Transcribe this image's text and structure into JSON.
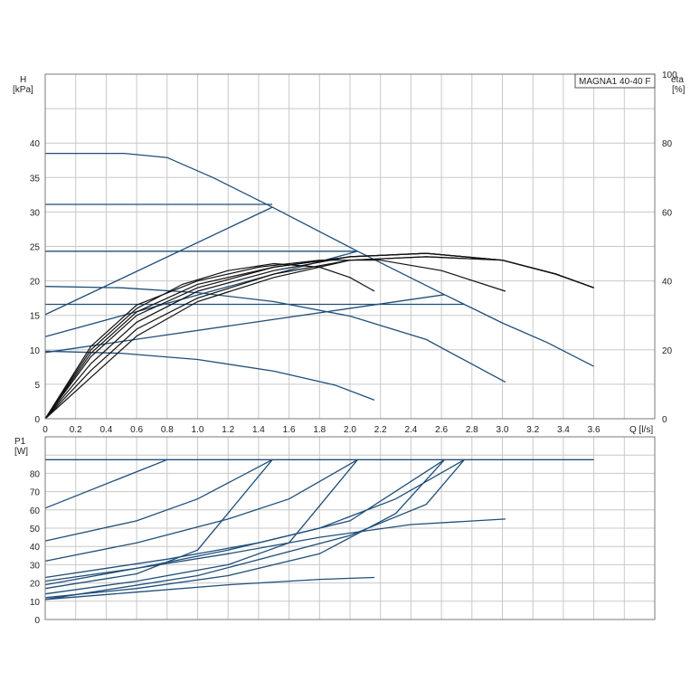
{
  "chart_data": [
    {
      "type": "line",
      "title": "MAGNA1 40-40 F",
      "xlabel": "Q [l/s]",
      "ylabel_line1": "H",
      "ylabel_line2": "[kPa]",
      "y2label_line1": "eta",
      "y2label_line2": "[%]",
      "xlim": [
        0,
        4
      ],
      "ylim": [
        0,
        50
      ],
      "y2lim": [
        0,
        100
      ],
      "x_ticks": [
        0,
        0.2,
        0.4,
        0.6,
        0.8,
        1.0,
        1.2,
        1.4,
        1.6,
        1.8,
        2.0,
        2.2,
        2.4,
        2.6,
        2.8,
        3.0,
        3.2,
        3.4,
        3.6
      ],
      "x_tick_labels": [
        "0",
        "0.2",
        "0.4",
        "0.6",
        "0.8",
        "1.0",
        "1.2",
        "1.4",
        "1.6",
        "1.8",
        "2.0",
        "2.2",
        "2.4",
        "2.6",
        "2.8",
        "3.0",
        "3.2",
        "3.4",
        "3.6"
      ],
      "y_ticks": [
        0,
        5,
        10,
        15,
        20,
        25,
        30,
        35,
        40
      ],
      "y2_ticks": [
        0,
        20,
        40,
        60,
        80,
        100
      ],
      "grid": true,
      "head_series": [
        {
          "color": "#1f4e79",
          "points": [
            [
              0,
              38.5
            ],
            [
              0.52,
              38.5
            ],
            [
              0.8,
              37.9
            ],
            [
              1.1,
              35.0
            ],
            [
              1.49,
              30.7
            ],
            [
              2.05,
              24.3
            ],
            [
              2.62,
              18.0
            ],
            [
              3.0,
              13.9
            ],
            [
              3.3,
              11.0
            ],
            [
              3.6,
              7.6
            ]
          ]
        },
        {
          "color": "#1f4e79",
          "points": [
            [
              0,
              31.1
            ],
            [
              1.49,
              31.1
            ]
          ]
        },
        {
          "color": "#1f4e79",
          "points": [
            [
              0,
              24.3
            ],
            [
              2.05,
              24.3
            ]
          ]
        },
        {
          "color": "#1f4e79",
          "points": [
            [
              0,
              16.6
            ],
            [
              2.75,
              16.6
            ]
          ]
        },
        {
          "color": "#1f4e79",
          "points": [
            [
              0,
              15.1
            ],
            [
              1.49,
              30.7
            ]
          ]
        },
        {
          "color": "#1f4e79",
          "points": [
            [
              0,
              11.9
            ],
            [
              2.05,
              24.3
            ]
          ]
        },
        {
          "color": "#1f4e79",
          "points": [
            [
              0,
              9.6
            ],
            [
              2.62,
              18.0
            ]
          ]
        },
        {
          "color": "#1f4e79",
          "points": [
            [
              0,
              19.2
            ],
            [
              0.5,
              19.0
            ],
            [
              1.0,
              18.3
            ],
            [
              1.5,
              17.0
            ],
            [
              2.0,
              14.9
            ],
            [
              2.5,
              11.5
            ],
            [
              3.02,
              5.3
            ]
          ]
        },
        {
          "color": "#1f4e79",
          "points": [
            [
              0,
              9.8
            ],
            [
              0.5,
              9.5
            ],
            [
              1.0,
              8.6
            ],
            [
              1.5,
              6.9
            ],
            [
              1.9,
              4.9
            ],
            [
              2.16,
              2.7
            ]
          ]
        }
      ],
      "eta_series": [
        {
          "color": "#111111",
          "points": [
            [
              0,
              0
            ],
            [
              0.3,
              20
            ],
            [
              0.6,
              32
            ],
            [
              0.9,
              39
            ],
            [
              1.2,
              43
            ],
            [
              1.5,
              45
            ],
            [
              1.8,
              44
            ],
            [
              2.0,
              41
            ],
            [
              2.16,
              37
            ]
          ]
        },
        {
          "color": "#111111",
          "points": [
            [
              0,
              0
            ],
            [
              0.3,
              21
            ],
            [
              0.6,
              33
            ],
            [
              1.0,
              40
            ],
            [
              1.4,
              44
            ],
            [
              1.8,
              46
            ],
            [
              2.2,
              46
            ],
            [
              2.6,
              43
            ],
            [
              3.02,
              37
            ]
          ]
        },
        {
          "color": "#111111",
          "points": [
            [
              0,
              0
            ],
            [
              0.3,
              18
            ],
            [
              0.6,
              30
            ],
            [
              1.0,
              38
            ],
            [
              1.5,
              44
            ],
            [
              2.0,
              47
            ],
            [
              2.5,
              48
            ],
            [
              3.0,
              46
            ],
            [
              3.35,
              42
            ],
            [
              3.6,
              38
            ]
          ]
        },
        {
          "color": "#111111",
          "points": [
            [
              0,
              0
            ],
            [
              0.3,
              16
            ],
            [
              0.6,
              28
            ],
            [
              1.0,
              37
            ],
            [
              1.5,
              43
            ],
            [
              2.0,
              47
            ],
            [
              2.5,
              48
            ],
            [
              3.0,
              46
            ],
            [
              3.35,
              42
            ],
            [
              3.6,
              38
            ]
          ]
        },
        {
          "color": "#111111",
          "points": [
            [
              0,
              0
            ],
            [
              0.3,
              14
            ],
            [
              0.6,
              26
            ],
            [
              1.0,
              35
            ],
            [
              1.5,
              42
            ],
            [
              2.0,
              46
            ],
            [
              2.5,
              47
            ],
            [
              3.0,
              46
            ],
            [
              3.35,
              42
            ],
            [
              3.6,
              38
            ]
          ]
        },
        {
          "color": "#111111",
          "points": [
            [
              0,
              0
            ],
            [
              0.3,
              12
            ],
            [
              0.6,
              24
            ],
            [
              1.0,
              34
            ],
            [
              1.5,
              41
            ],
            [
              2.0,
              46
            ],
            [
              2.5,
              47
            ],
            [
              3.0,
              46
            ],
            [
              3.35,
              42
            ],
            [
              3.6,
              38
            ]
          ]
        },
        {
          "color": "#111111",
          "points": [
            [
              0,
              0
            ],
            [
              0.3,
              19
            ],
            [
              0.6,
              31
            ],
            [
              1.0,
              39
            ],
            [
              1.5,
              44
            ],
            [
              2.0,
              47
            ],
            [
              2.5,
              48
            ],
            [
              3.0,
              46
            ],
            [
              3.35,
              42
            ],
            [
              3.6,
              38
            ]
          ]
        }
      ]
    },
    {
      "type": "line",
      "ylabel_line1": "P1",
      "ylabel_line2": "[W]",
      "xlim": [
        0,
        4
      ],
      "ylim": [
        0,
        100
      ],
      "y_ticks": [
        0,
        10,
        20,
        30,
        40,
        50,
        60,
        70,
        80
      ],
      "grid": true,
      "series": [
        {
          "color": "#1f4e79",
          "points": [
            [
              0,
              87.5
            ],
            [
              3.6,
              87.5
            ]
          ]
        },
        {
          "color": "#1f4e79",
          "points": [
            [
              0,
              61
            ],
            [
              0.8,
              87.5
            ]
          ]
        },
        {
          "color": "#1f4e79",
          "points": [
            [
              0,
              43
            ],
            [
              0.6,
              54
            ],
            [
              1.0,
              66
            ],
            [
              1.49,
              87.5
            ]
          ]
        },
        {
          "color": "#1f4e79",
          "points": [
            [
              0,
              32
            ],
            [
              0.6,
              42
            ],
            [
              1.2,
              55
            ],
            [
              1.6,
              66
            ],
            [
              2.05,
              87.5
            ]
          ]
        },
        {
          "color": "#1f4e79",
          "points": [
            [
              0,
              23
            ],
            [
              0.8,
              33
            ],
            [
              1.4,
              42
            ],
            [
              2.0,
              54
            ],
            [
              2.62,
              87.5
            ]
          ]
        },
        {
          "color": "#1f4e79",
          "points": [
            [
              0,
              19
            ],
            [
              0.6,
              28
            ],
            [
              1.2,
              38
            ],
            [
              1.8,
              50
            ],
            [
              2.3,
              66
            ],
            [
              2.75,
              87.5
            ]
          ]
        },
        {
          "color": "#1f4e79",
          "points": [
            [
              0,
              17
            ],
            [
              0.6,
              25
            ],
            [
              1.0,
              38
            ],
            [
              1.49,
              87.5
            ]
          ]
        },
        {
          "color": "#1f4e79",
          "points": [
            [
              0,
              14
            ],
            [
              0.6,
              21
            ],
            [
              1.2,
              30
            ],
            [
              1.6,
              42
            ],
            [
              2.05,
              87.5
            ]
          ]
        },
        {
          "color": "#1f4e79",
          "points": [
            [
              0,
              12
            ],
            [
              0.6,
              17
            ],
            [
              1.2,
              24
            ],
            [
              1.8,
              36
            ],
            [
              2.3,
              58
            ],
            [
              2.62,
              87.5
            ]
          ]
        },
        {
          "color": "#1f4e79",
          "points": [
            [
              0,
              11
            ],
            [
              1.0,
              24
            ],
            [
              2.0,
              46
            ],
            [
              2.5,
              63
            ],
            [
              2.75,
              87.5
            ]
          ]
        },
        {
          "color": "#1f4e79",
          "points": [
            [
              0,
              21
            ],
            [
              0.6,
              28
            ],
            [
              1.2,
              36
            ],
            [
              1.8,
              45
            ],
            [
              2.4,
              52
            ],
            [
              3.02,
              55
            ]
          ]
        },
        {
          "color": "#1f4e79",
          "points": [
            [
              0,
              11
            ],
            [
              0.6,
              15
            ],
            [
              1.2,
              19
            ],
            [
              1.8,
              22
            ],
            [
              2.16,
              23
            ]
          ]
        }
      ]
    }
  ]
}
